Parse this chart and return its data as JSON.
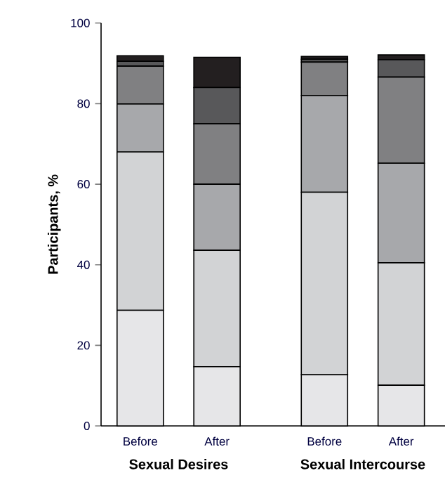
{
  "chart_data": {
    "type": "bar",
    "stacked": true,
    "ylabel": "Participants, %",
    "categories": [
      "Before",
      "After",
      "Before",
      "After"
    ],
    "annotations": [
      "Sexual Desires",
      "Sexual Intercourse"
    ],
    "ylim": [
      0,
      100
    ],
    "yticks": [
      0,
      20,
      40,
      60,
      80,
      100
    ],
    "series": [
      {
        "color": "#e6e6e8",
        "values": [
          28.7,
          14.7,
          12.7,
          10.1
        ]
      },
      {
        "color": "#d2d3d5",
        "values": [
          39.3,
          28.9,
          45.3,
          30.4
        ]
      },
      {
        "color": "#a7a8ab",
        "values": [
          11.9,
          16.4,
          24.0,
          24.7
        ]
      },
      {
        "color": "#808082",
        "values": [
          9.4,
          15.0,
          8.3,
          21.4
        ]
      },
      {
        "color": "#58585a",
        "values": [
          1.2,
          9.0,
          0.7,
          4.3
        ]
      },
      {
        "color": "#231f20",
        "values": [
          1.4,
          7.5,
          0.7,
          1.2
        ]
      }
    ]
  }
}
